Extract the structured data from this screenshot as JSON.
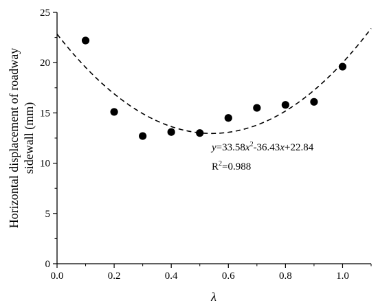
{
  "chart_data": {
    "type": "scatter",
    "xlabel": "λ",
    "ylabel": "Horizontal displacement of roadway sidewall (mm)",
    "ylabel_lines": [
      "Horizontal displacement of roadway",
      "sidewall (mm)"
    ],
    "xlim": [
      0.0,
      1.1
    ],
    "ylim": [
      0,
      25
    ],
    "x_ticks": [
      0.0,
      0.2,
      0.4,
      0.6,
      0.8,
      1.0
    ],
    "x_tick_labels": [
      "0.0",
      "0.2",
      "0.4",
      "0.6",
      "0.8",
      "1.0"
    ],
    "y_ticks": [
      0,
      5,
      10,
      15,
      20,
      25
    ],
    "y_tick_labels": [
      "0",
      "5",
      "10",
      "15",
      "20",
      "25"
    ],
    "grid": false,
    "legend": "none",
    "series": [
      {
        "type": "scatter",
        "x": [
          0.1,
          0.2,
          0.3,
          0.4,
          0.5,
          0.6,
          0.7,
          0.8,
          0.9,
          1.0
        ],
        "y": [
          22.2,
          15.1,
          12.7,
          13.1,
          13.0,
          14.5,
          15.5,
          15.8,
          16.1,
          19.6
        ],
        "color": "#000000"
      }
    ],
    "fit": {
      "equation": "y=33.58x^2-36.43x+22.84",
      "coefficients": [
        33.58,
        -36.43,
        22.84
      ],
      "style": "dashed",
      "color": "#000000"
    },
    "annotations": {
      "eq": {
        "y": "y",
        "p1": "=33.58",
        "x1": "x",
        "sup": "2",
        "p2": "-36.43",
        "x2": "x",
        "p3": "+22.84"
      },
      "r2": {
        "r": "R",
        "sup": "2",
        "val": "=0.988"
      }
    }
  }
}
